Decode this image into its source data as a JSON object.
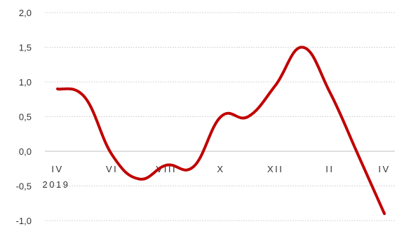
{
  "chart_data": {
    "type": "line",
    "title": "",
    "xlabel": "",
    "ylabel": "",
    "ylim": [
      -1.0,
      2.0
    ],
    "yticks": [
      -1.0,
      -0.5,
      0.0,
      0.5,
      1.0,
      1.5,
      2.0
    ],
    "ytick_labels": [
      "-1,0",
      "-0,5",
      "0,0",
      "0,5",
      "1,0",
      "1,5",
      "2,0"
    ],
    "xtick_labels": [
      "IV",
      "VI",
      "VIII",
      "X",
      "XII",
      "II",
      "IV"
    ],
    "year_label": "2019",
    "grid": true,
    "color": "#c00000",
    "series": [
      {
        "values": [
          0.9,
          0.78,
          -0.05,
          -0.4,
          -0.2,
          -0.22,
          0.5,
          0.5,
          0.95,
          1.5,
          0.85,
          -0.02,
          -0.9
        ]
      }
    ]
  }
}
